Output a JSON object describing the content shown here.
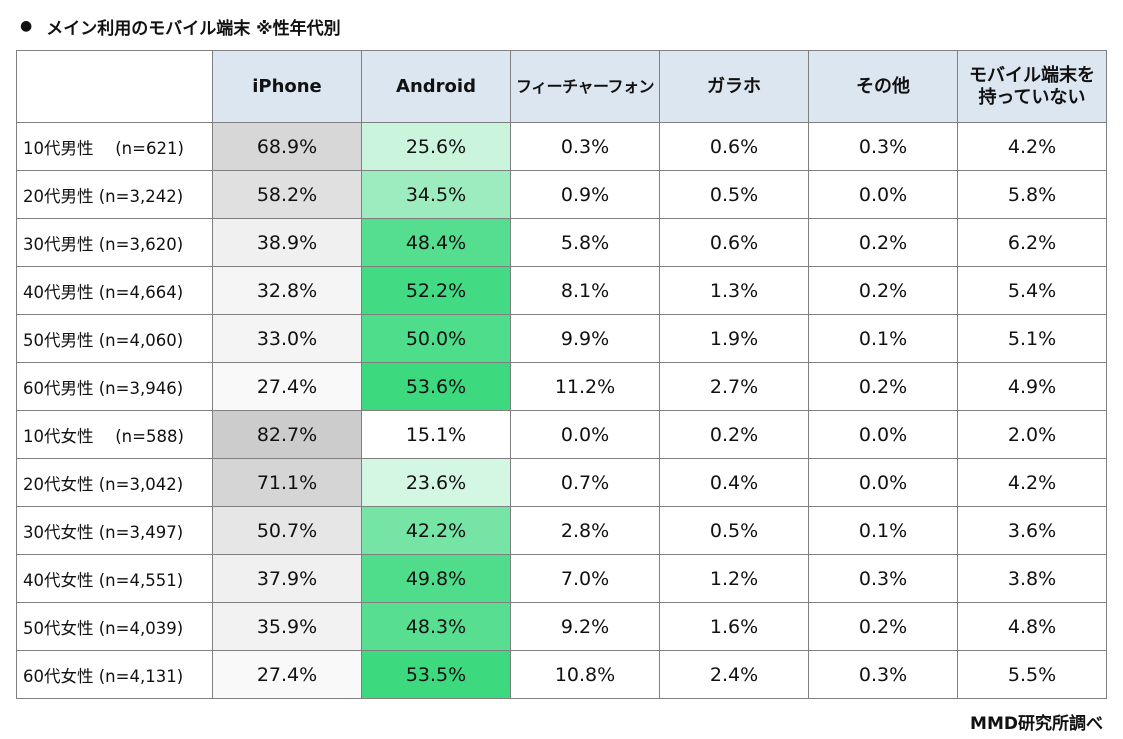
{
  "title": "メイン利用のモバイル端末 ※性年代別",
  "title_bullet": "●",
  "source": "MMD研究所調べ",
  "chart_data": {
    "type": "table",
    "columns": [
      "iPhone",
      "Android",
      "フィーチャーフォン",
      "ガラホ",
      "その他",
      "モバイル端末を\n持っていない"
    ],
    "rows": [
      {
        "label": "10代男性　 (n=621)",
        "values": [
          68.9,
          25.6,
          0.3,
          0.6,
          0.3,
          4.2
        ]
      },
      {
        "label": "20代男性 (n=3,242)",
        "values": [
          58.2,
          34.5,
          0.9,
          0.5,
          0.0,
          5.8
        ]
      },
      {
        "label": "30代男性 (n=3,620)",
        "values": [
          38.9,
          48.4,
          5.8,
          0.6,
          0.2,
          6.2
        ]
      },
      {
        "label": "40代男性 (n=4,664)",
        "values": [
          32.8,
          52.2,
          8.1,
          1.3,
          0.2,
          5.4
        ]
      },
      {
        "label": "50代男性 (n=4,060)",
        "values": [
          33.0,
          50.0,
          9.9,
          1.9,
          0.1,
          5.1
        ]
      },
      {
        "label": "60代男性 (n=3,946)",
        "values": [
          27.4,
          53.6,
          11.2,
          2.7,
          0.2,
          4.9
        ]
      },
      {
        "label": "10代女性　 (n=588)",
        "values": [
          82.7,
          15.1,
          0.0,
          0.2,
          0.0,
          2.0
        ]
      },
      {
        "label": "20代女性 (n=3,042)",
        "values": [
          71.1,
          23.6,
          0.7,
          0.4,
          0.0,
          4.2
        ]
      },
      {
        "label": "30代女性 (n=3,497)",
        "values": [
          50.7,
          42.2,
          2.8,
          0.5,
          0.1,
          3.6
        ]
      },
      {
        "label": "40代女性 (n=4,551)",
        "values": [
          37.9,
          49.8,
          7.0,
          1.2,
          0.3,
          3.8
        ]
      },
      {
        "label": "50代女性 (n=4,039)",
        "values": [
          35.9,
          48.3,
          9.2,
          1.6,
          0.2,
          4.8
        ]
      },
      {
        "label": "60代女性 (n=4,131)",
        "values": [
          27.4,
          53.5,
          10.8,
          2.4,
          0.3,
          5.5
        ]
      }
    ],
    "unit": "%",
    "heatmap": {
      "iPhone": {
        "low": "#ffffff",
        "high": "#cccccc",
        "min": 20,
        "max": 82.7
      },
      "Android": {
        "low": "#ffffff",
        "high": "#3cd97f",
        "min": 15.1,
        "max": 53.6
      }
    },
    "header_color": "#dce6f1",
    "border_color": "#7f7f7f"
  }
}
